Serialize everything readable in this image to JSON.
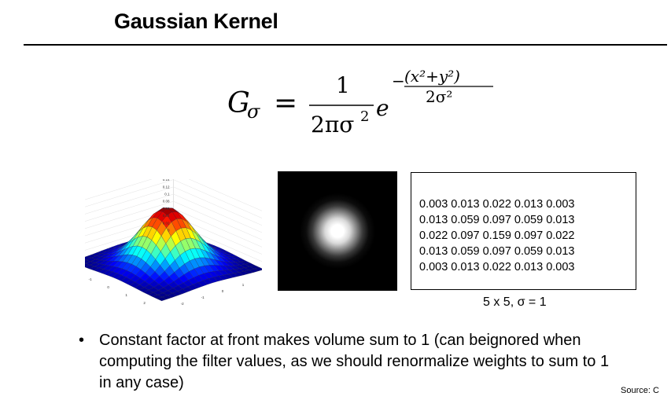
{
  "slide": {
    "title": "Gaussian Kernel",
    "formula": {
      "lhs": "G",
      "lhs_sub": "σ",
      "equals": "=",
      "numerator": "1",
      "denominator": "2πσ",
      "denominator_sup": "2",
      "exp_base": "e",
      "exp_neg": "−",
      "exp_num": "(x²+y²)",
      "exp_den": "2σ²"
    },
    "kernel": {
      "rows": [
        [
          "0.003",
          "0.013",
          "0.022",
          "0.013",
          "0.003"
        ],
        [
          "0.013",
          "0.059",
          "0.097",
          "0.059",
          "0.013"
        ],
        [
          "0.022",
          "0.097",
          "0.159",
          "0.097",
          "0.022"
        ],
        [
          "0.013",
          "0.059",
          "0.097",
          "0.059",
          "0.013"
        ],
        [
          "0.003",
          "0.013",
          "0.022",
          "0.013",
          "0.003"
        ]
      ],
      "caption": "5 x 5, σ = 1"
    },
    "bullet": {
      "symbol": "•",
      "text": "Constant factor at front makes volume sum to 1 (can beignored when computing the filter values, as we should renormalize weights to sum to 1 in any case)"
    },
    "source": "Source: C",
    "plot_labels": {
      "z_ticks": [
        "0.16",
        "0.14",
        "0.12",
        "0.1",
        "0.08",
        "0.06",
        "0.04",
        "0.02",
        "0"
      ],
      "x_ticks": [
        "-2",
        "-1",
        "0",
        "1",
        "2"
      ],
      "y_ticks": [
        "-2",
        "-1",
        "0",
        "1",
        "2"
      ]
    }
  }
}
